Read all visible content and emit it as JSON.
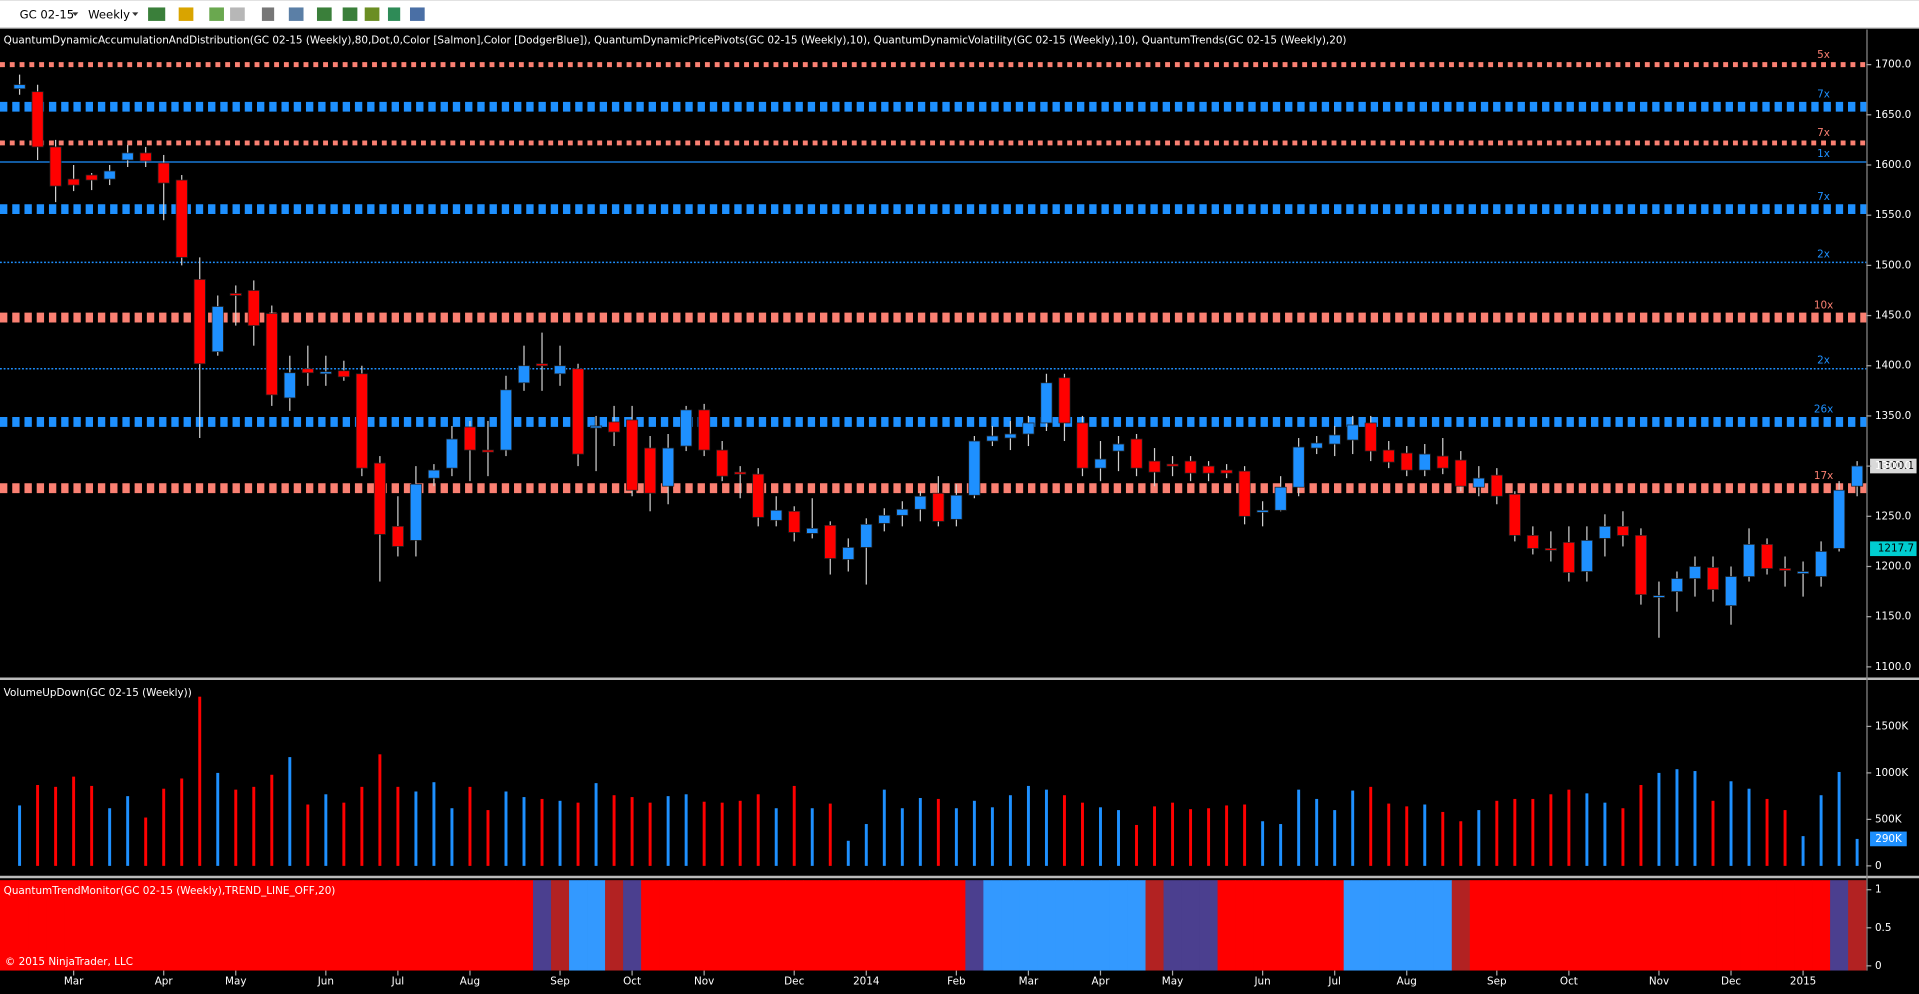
{
  "toolbar": {
    "symbol": "GC 02-15",
    "interval": "Weekly"
  },
  "copyright": "© 2015 NinjaTrader, LLC",
  "chart_data": [
    {
      "type": "candlestick",
      "title": "QuantumDynamicAccumulationAndDistribution(GC 02-15 (Weekly),80,Dot,0,Color [Salmon],Color [DodgerBlue]), QuantumDynamicPricePivots(GC 02-15 (Weekly),10), QuantumDynamicVolatility(GC 02-15 (Weekly),10), QuantumTrends(GC 02-15 (Weekly),20)",
      "categories": [
        null,
        null,
        null,
        "Mar",
        null,
        null,
        null,
        null,
        "Apr",
        null,
        null,
        null,
        "May",
        null,
        null,
        null,
        null,
        "Jun",
        null,
        null,
        null,
        "Jul",
        null,
        null,
        null,
        "Aug",
        null,
        null,
        null,
        null,
        "Sep",
        null,
        null,
        null,
        "Oct",
        null,
        null,
        null,
        "Nov",
        null,
        null,
        null,
        null,
        "Dec",
        null,
        null,
        null,
        "2014",
        null,
        null,
        null,
        null,
        "Feb",
        null,
        null,
        null,
        "Mar",
        null,
        null,
        null,
        "Apr",
        null,
        null,
        null,
        "May",
        null,
        null,
        null,
        null,
        "Jun",
        null,
        null,
        null,
        "Jul",
        null,
        null,
        null,
        "Aug",
        null,
        null,
        null,
        null,
        "Sep",
        null,
        null,
        null,
        "Oct",
        null,
        null,
        null,
        null,
        "Nov",
        null,
        null,
        null,
        "Dec",
        null,
        null,
        null,
        "2015",
        null,
        null,
        null
      ],
      "open": [
        1676,
        1673,
        1618,
        1586,
        1590,
        1586,
        1605,
        1612,
        1602,
        1585,
        1486,
        1414,
        1472,
        1475,
        1452,
        1368,
        1397,
        1392,
        1395,
        1392,
        1303,
        1240,
        1226,
        1288,
        1298,
        1339,
        1316,
        1316,
        1383,
        1402,
        1392,
        1397,
        1338,
        1344,
        1346,
        1318,
        1280,
        1320,
        1356,
        1316,
        1294,
        1292,
        1246,
        1255,
        1233,
        1241,
        1207,
        1219,
        1243,
        1251,
        1257,
        1273,
        1247,
        1271,
        1325,
        1328,
        1332,
        1343,
        1388,
        1343,
        1298,
        1315,
        1327,
        1305,
        1302,
        1305,
        1300,
        1296,
        1295,
        1254,
        1256,
        1279,
        1318,
        1322,
        1326,
        1343,
        1316,
        1313,
        1296,
        1310,
        1306,
        1279,
        1291,
        1272,
        1231,
        1218,
        1224,
        1195,
        1228,
        1240,
        1231,
        1170,
        1175,
        1188,
        1199,
        1161,
        1190,
        1222,
        1198,
        1193,
        1190,
        1218,
        1280
      ],
      "high": [
        1690,
        1680,
        1625,
        1600,
        1592,
        1600,
        1620,
        1618,
        1610,
        1590,
        1508,
        1470,
        1480,
        1485,
        1460,
        1410,
        1420,
        1410,
        1405,
        1400,
        1310,
        1270,
        1300,
        1302,
        1340,
        1345,
        1345,
        1390,
        1420,
        1433,
        1420,
        1402,
        1350,
        1360,
        1360,
        1330,
        1332,
        1360,
        1362,
        1325,
        1300,
        1298,
        1270,
        1260,
        1268,
        1245,
        1228,
        1248,
        1258,
        1265,
        1275,
        1290,
        1282,
        1330,
        1340,
        1345,
        1350,
        1392,
        1392,
        1350,
        1325,
        1330,
        1332,
        1318,
        1310,
        1310,
        1305,
        1302,
        1300,
        1265,
        1290,
        1328,
        1330,
        1340,
        1350,
        1350,
        1325,
        1320,
        1322,
        1328,
        1315,
        1300,
        1298,
        1275,
        1240,
        1235,
        1240,
        1240,
        1252,
        1255,
        1238,
        1185,
        1195,
        1210,
        1210,
        1200,
        1238,
        1228,
        1210,
        1205,
        1225,
        1285,
        1305
      ],
      "low": [
        1670,
        1605,
        1563,
        1574,
        1575,
        1580,
        1598,
        1598,
        1545,
        1500,
        1328,
        1410,
        1440,
        1420,
        1360,
        1355,
        1380,
        1380,
        1385,
        1290,
        1185,
        1210,
        1210,
        1280,
        1290,
        1285,
        1290,
        1310,
        1375,
        1375,
        1380,
        1300,
        1295,
        1320,
        1270,
        1255,
        1262,
        1315,
        1310,
        1285,
        1268,
        1240,
        1240,
        1225,
        1228,
        1192,
        1195,
        1182,
        1235,
        1240,
        1245,
        1240,
        1240,
        1268,
        1320,
        1316,
        1320,
        1335,
        1325,
        1290,
        1285,
        1295,
        1290,
        1280,
        1290,
        1285,
        1285,
        1288,
        1242,
        1240,
        1255,
        1270,
        1312,
        1310,
        1312,
        1305,
        1298,
        1290,
        1290,
        1292,
        1275,
        1270,
        1262,
        1225,
        1212,
        1205,
        1185,
        1185,
        1210,
        1220,
        1162,
        1129,
        1155,
        1170,
        1165,
        1142,
        1185,
        1192,
        1180,
        1170,
        1180,
        1215,
        1270
      ],
      "close": [
        1680,
        1618,
        1579,
        1580,
        1585,
        1594,
        1612,
        1604,
        1582,
        1508,
        1402,
        1459,
        1470,
        1440,
        1371,
        1393,
        1393,
        1394,
        1389,
        1298,
        1232,
        1220,
        1282,
        1296,
        1327,
        1316,
        1314,
        1376,
        1400,
        1400,
        1400,
        1312,
        1340,
        1334,
        1276,
        1273,
        1318,
        1356,
        1316,
        1290,
        1292,
        1249,
        1256,
        1234,
        1238,
        1208,
        1219,
        1242,
        1251,
        1257,
        1270,
        1245,
        1271,
        1325,
        1330,
        1332,
        1343,
        1383,
        1343,
        1298,
        1307,
        1322,
        1298,
        1294,
        1300,
        1293,
        1293,
        1293,
        1250,
        1256,
        1279,
        1319,
        1323,
        1331,
        1341,
        1315,
        1304,
        1296,
        1312,
        1298,
        1280,
        1288,
        1270,
        1231,
        1218,
        1217,
        1194,
        1226,
        1240,
        1231,
        1172,
        1171,
        1188,
        1200,
        1177,
        1190,
        1222,
        1198,
        1196,
        1195,
        1215,
        1276,
        1300.1
      ],
      "up_color": "#1e90ff",
      "down_color": "#ff0000",
      "ylim": [
        1090,
        1735
      ],
      "yticks": [
        {
          "value": 1100,
          "label": "1100.0"
        },
        {
          "value": 1150,
          "label": "1150.0"
        },
        {
          "value": 1200,
          "label": "1200.0"
        },
        {
          "value": 1250,
          "label": "1250.0"
        },
        {
          "value": 1300,
          "label": "1300.0"
        },
        {
          "value": 1350,
          "label": "1350.0"
        },
        {
          "value": 1400,
          "label": "1400.0"
        },
        {
          "value": 1450,
          "label": "1450.0"
        },
        {
          "value": 1500,
          "label": "1500.0"
        },
        {
          "value": 1550,
          "label": "1550.0"
        },
        {
          "value": 1600,
          "label": "1600.0"
        },
        {
          "value": 1650,
          "label": "1650.0"
        },
        {
          "value": 1700,
          "label": "1700.0"
        }
      ],
      "levels": [
        {
          "value": 1700,
          "color": "#fa8072",
          "style": "medium",
          "label": "5x"
        },
        {
          "value": 1658,
          "color": "#1e90ff",
          "style": "heavy",
          "label": "7x"
        },
        {
          "value": 1622,
          "color": "#fa8072",
          "style": "medium",
          "label": "7x"
        },
        {
          "value": 1603,
          "color": "#1e90ff",
          "style": "thin-solid",
          "label": "1x"
        },
        {
          "value": 1556,
          "color": "#1e90ff",
          "style": "heavy",
          "label": "7x"
        },
        {
          "value": 1503,
          "color": "#1e90ff",
          "style": "thin-dotted",
          "label": "2x"
        },
        {
          "value": 1448,
          "color": "#fa8072",
          "style": "heavy",
          "label": "10x"
        },
        {
          "value": 1397,
          "color": "#1e90ff",
          "style": "thin-dotted",
          "label": "2x"
        },
        {
          "value": 1344,
          "color": "#1e90ff",
          "style": "heavy",
          "label": "26x"
        },
        {
          "value": 1278,
          "color": "#fa8072",
          "style": "heavy",
          "label": "17x"
        }
      ],
      "indicator_value": 1217.7
    },
    {
      "type": "bar",
      "title": "VolumeUpDown(GC 02-15 (Weekly))",
      "values": [
        650000,
        870000,
        850000,
        960000,
        860000,
        620000,
        750000,
        520000,
        830000,
        940000,
        1820000,
        1000000,
        820000,
        850000,
        980000,
        1170000,
        660000,
        770000,
        680000,
        850000,
        1200000,
        850000,
        800000,
        900000,
        620000,
        850000,
        600000,
        800000,
        740000,
        720000,
        700000,
        680000,
        890000,
        760000,
        740000,
        680000,
        750000,
        770000,
        690000,
        680000,
        700000,
        770000,
        620000,
        860000,
        620000,
        670000,
        270000,
        450000,
        820000,
        620000,
        730000,
        720000,
        620000,
        700000,
        630000,
        760000,
        860000,
        820000,
        760000,
        680000,
        630000,
        600000,
        440000,
        640000,
        680000,
        610000,
        620000,
        650000,
        660000,
        480000,
        450000,
        820000,
        720000,
        600000,
        810000,
        850000,
        670000,
        640000,
        660000,
        580000,
        480000,
        600000,
        700000,
        720000,
        720000,
        770000,
        820000,
        780000,
        680000,
        620000,
        870000,
        1000000,
        1040000,
        1020000,
        700000,
        910000,
        830000,
        720000,
        600000,
        320000,
        760000,
        1010000,
        290000
      ],
      "badge_label": "290K",
      "ylim": [
        -100000,
        1980000
      ],
      "yticks": [
        0,
        {
          "value": 500000,
          "label": "500K"
        },
        {
          "value": 1000000,
          "label": "1000K"
        },
        {
          "value": 1500000,
          "label": "1500K"
        }
      ]
    },
    {
      "type": "band",
      "title": "QuantumTrendMonitor(GC 02-15 (Weekly),TREND_LINE_OFF,20)",
      "colors": [
        "#ff0000",
        "#ff0000",
        "#ff0000",
        "#ff0000",
        "#ff0000",
        "#ff0000",
        "#ff0000",
        "#ff0000",
        "#ff0000",
        "#ff0000",
        "#ff0000",
        "#ff0000",
        "#ff0000",
        "#ff0000",
        "#ff0000",
        "#ff0000",
        "#ff0000",
        "#ff0000",
        "#ff0000",
        "#ff0000",
        "#ff0000",
        "#ff0000",
        "#ff0000",
        "#ff0000",
        "#ff0000",
        "#ff0000",
        "#ff0000",
        "#ff0000",
        "#ff0000",
        "#4b3f8f",
        "#b22222",
        "#3399ff",
        "#3399ff",
        "#b22222",
        "#4b3f8f",
        "#ff0000",
        "#ff0000",
        "#ff0000",
        "#ff0000",
        "#ff0000",
        "#ff0000",
        "#ff0000",
        "#ff0000",
        "#ff0000",
        "#ff0000",
        "#ff0000",
        "#ff0000",
        "#ff0000",
        "#ff0000",
        "#ff0000",
        "#ff0000",
        "#ff0000",
        "#ff0000",
        "#4b3f8f",
        "#3399ff",
        "#3399ff",
        "#3399ff",
        "#3399ff",
        "#3399ff",
        "#3399ff",
        "#3399ff",
        "#3399ff",
        "#3399ff",
        "#b22222",
        "#4b3f8f",
        "#4b3f8f",
        "#4b3f8f",
        "#ff0000",
        "#ff0000",
        "#ff0000",
        "#ff0000",
        "#ff0000",
        "#ff0000",
        "#ff0000",
        "#3399ff",
        "#3399ff",
        "#3399ff",
        "#3399ff",
        "#3399ff",
        "#3399ff",
        "#b22222",
        "#ff0000",
        "#ff0000",
        "#ff0000",
        "#ff0000",
        "#ff0000",
        "#ff0000",
        "#ff0000",
        "#ff0000",
        "#ff0000",
        "#ff0000",
        "#ff0000",
        "#ff0000",
        "#ff0000",
        "#ff0000",
        "#ff0000",
        "#ff0000",
        "#ff0000",
        "#ff0000",
        "#ff0000",
        "#ff0000",
        "#4b3f8f",
        "#b22222"
      ],
      "ylim": [
        -0.063,
        1.127
      ],
      "yticks": [
        0,
        0.5,
        1
      ]
    }
  ]
}
